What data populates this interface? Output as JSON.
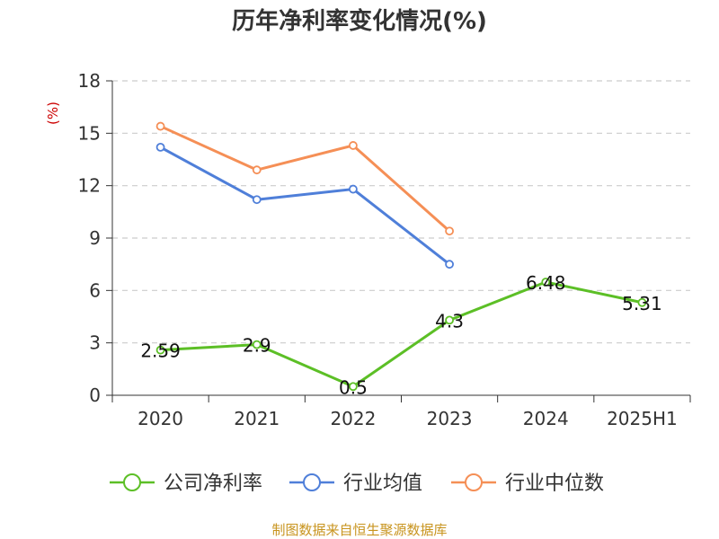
{
  "chart_data": {
    "type": "line",
    "title": "历年净利率变化情况(%)",
    "ylabel": "(%)",
    "categories": [
      "2020",
      "2021",
      "2022",
      "2023",
      "2024",
      "2025H1"
    ],
    "ylim": [
      0,
      18
    ],
    "yticks": [
      0,
      3,
      6,
      9,
      12,
      15,
      18
    ],
    "grid": true,
    "legend_position": "bottom",
    "series": [
      {
        "name": "公司净利率",
        "color": "#5cbf26",
        "values": [
          2.59,
          2.9,
          0.5,
          4.3,
          6.48,
          5.31
        ],
        "labels": [
          "2.59",
          "2.9",
          "0.5",
          "4.3",
          "6.48",
          "5.31"
        ]
      },
      {
        "name": "行业均值",
        "color": "#4f7fd9",
        "values": [
          14.2,
          11.2,
          11.8,
          7.5,
          null,
          null
        ]
      },
      {
        "name": "行业中位数",
        "color": "#f58f56",
        "values": [
          15.4,
          12.9,
          14.3,
          9.4,
          null,
          null
        ]
      }
    ]
  },
  "source": {
    "text": "制图数据来自恒生聚源数据库",
    "color": "#c8941e"
  },
  "unit_color": "#cc0000"
}
